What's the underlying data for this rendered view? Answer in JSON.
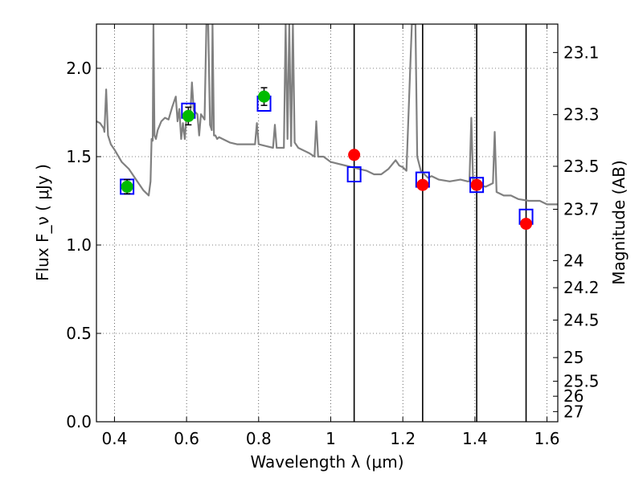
{
  "chart_data": {
    "type": "line",
    "xlabel": "Wavelength  λ (μm)",
    "ylabel": "Flux  F_ν  ( μJy )",
    "ylabel_right": "Magnitude (AB)",
    "xlim": [
      0.35,
      1.63
    ],
    "ylim": [
      0.0,
      2.25
    ],
    "grid": true,
    "x_ticks": [
      0.4,
      0.6,
      0.8,
      1,
      1.2,
      1.4,
      1.6
    ],
    "x_tick_labels": [
      "0.4",
      "0.6",
      "0.8",
      "1",
      "1.2",
      "1.4",
      "1.6"
    ],
    "y_ticks": [
      0.0,
      0.5,
      1.0,
      1.5,
      2.0
    ],
    "y_tick_labels": [
      "0.0",
      "0.5",
      "1.0",
      "1.5",
      "2.0"
    ],
    "mag_ticks": [
      {
        "flux": 2.0893,
        "label": "23.1"
      },
      {
        "flux": 1.7378,
        "label": "23.3"
      },
      {
        "flux": 1.4454,
        "label": "23.5"
      },
      {
        "flux": 1.2023,
        "label": "23.7"
      },
      {
        "flux": 0.912,
        "label": "24"
      },
      {
        "flux": 0.7586,
        "label": "24.2"
      },
      {
        "flux": 0.5754,
        "label": "24.5"
      },
      {
        "flux": 0.3631,
        "label": "25"
      },
      {
        "flux": 0.2291,
        "label": "25.5"
      },
      {
        "flux": 0.1445,
        "label": "26"
      },
      {
        "flux": 0.0575,
        "label": "27"
      }
    ],
    "vertical_lines": [
      1.065,
      1.255,
      1.405,
      1.542
    ],
    "series": [
      {
        "kind": "spectrum",
        "color": "#808080",
        "points": [
          [
            0.35,
            1.7
          ],
          [
            0.36,
            1.69
          ],
          [
            0.37,
            1.66
          ],
          [
            0.372,
            1.64
          ],
          [
            0.377,
            1.88
          ],
          [
            0.382,
            1.62
          ],
          [
            0.39,
            1.57
          ],
          [
            0.4,
            1.54
          ],
          [
            0.42,
            1.47
          ],
          [
            0.44,
            1.43
          ],
          [
            0.46,
            1.37
          ],
          [
            0.48,
            1.31
          ],
          [
            0.49,
            1.29
          ],
          [
            0.495,
            1.28
          ],
          [
            0.5,
            1.36
          ],
          [
            0.503,
            1.6
          ],
          [
            0.506,
            1.59
          ],
          [
            0.508,
            2.25
          ],
          [
            0.511,
            1.62
          ],
          [
            0.515,
            1.6
          ],
          [
            0.52,
            1.65
          ],
          [
            0.53,
            1.7
          ],
          [
            0.54,
            1.72
          ],
          [
            0.55,
            1.71
          ],
          [
            0.56,
            1.78
          ],
          [
            0.57,
            1.84
          ],
          [
            0.575,
            1.7
          ],
          [
            0.58,
            1.77
          ],
          [
            0.585,
            1.6
          ],
          [
            0.59,
            1.69
          ],
          [
            0.595,
            1.6
          ],
          [
            0.6,
            1.73
          ],
          [
            0.61,
            1.72
          ],
          [
            0.615,
            1.92
          ],
          [
            0.62,
            1.76
          ],
          [
            0.63,
            1.74
          ],
          [
            0.635,
            1.62
          ],
          [
            0.64,
            1.74
          ],
          [
            0.65,
            1.71
          ],
          [
            0.655,
            2.25
          ],
          [
            0.66,
            2.25
          ],
          [
            0.665,
            1.68
          ],
          [
            0.67,
            1.65
          ],
          [
            0.672,
            2.25
          ],
          [
            0.676,
            1.62
          ],
          [
            0.68,
            1.62
          ],
          [
            0.685,
            1.6
          ],
          [
            0.69,
            1.61
          ],
          [
            0.7,
            1.6
          ],
          [
            0.72,
            1.58
          ],
          [
            0.74,
            1.57
          ],
          [
            0.76,
            1.57
          ],
          [
            0.78,
            1.57
          ],
          [
            0.79,
            1.57
          ],
          [
            0.795,
            1.69
          ],
          [
            0.8,
            1.57
          ],
          [
            0.82,
            1.56
          ],
          [
            0.84,
            1.55
          ],
          [
            0.845,
            1.68
          ],
          [
            0.85,
            1.55
          ],
          [
            0.86,
            1.55
          ],
          [
            0.87,
            1.55
          ],
          [
            0.875,
            2.25
          ],
          [
            0.88,
            1.6
          ],
          [
            0.885,
            2.25
          ],
          [
            0.89,
            1.56
          ],
          [
            0.895,
            2.25
          ],
          [
            0.9,
            1.58
          ],
          [
            0.91,
            1.55
          ],
          [
            0.92,
            1.54
          ],
          [
            0.94,
            1.52
          ],
          [
            0.955,
            1.5
          ],
          [
            0.96,
            1.7
          ],
          [
            0.965,
            1.5
          ],
          [
            0.98,
            1.5
          ],
          [
            1.0,
            1.47
          ],
          [
            1.02,
            1.46
          ],
          [
            1.04,
            1.45
          ],
          [
            1.06,
            1.44
          ],
          [
            1.08,
            1.43
          ],
          [
            1.1,
            1.42
          ],
          [
            1.12,
            1.4
          ],
          [
            1.14,
            1.4
          ],
          [
            1.16,
            1.43
          ],
          [
            1.18,
            1.48
          ],
          [
            1.19,
            1.45
          ],
          [
            1.2,
            1.44
          ],
          [
            1.21,
            1.42
          ],
          [
            1.225,
            2.25
          ],
          [
            1.235,
            2.25
          ],
          [
            1.24,
            1.5
          ],
          [
            1.25,
            1.42
          ],
          [
            1.27,
            1.38
          ],
          [
            1.28,
            1.39
          ],
          [
            1.3,
            1.37
          ],
          [
            1.33,
            1.36
          ],
          [
            1.36,
            1.37
          ],
          [
            1.38,
            1.36
          ],
          [
            1.385,
            1.36
          ],
          [
            1.39,
            1.72
          ],
          [
            1.395,
            1.36
          ],
          [
            1.4,
            1.35
          ],
          [
            1.41,
            1.34
          ],
          [
            1.43,
            1.33
          ],
          [
            1.44,
            1.34
          ],
          [
            1.45,
            1.35
          ],
          [
            1.455,
            1.64
          ],
          [
            1.46,
            1.3
          ],
          [
            1.48,
            1.28
          ],
          [
            1.5,
            1.28
          ],
          [
            1.52,
            1.26
          ],
          [
            1.55,
            1.25
          ],
          [
            1.58,
            1.25
          ],
          [
            1.6,
            1.23
          ],
          [
            1.63,
            1.23
          ]
        ]
      },
      {
        "kind": "squares",
        "color": "#0000ff",
        "points": [
          [
            0.435,
            1.33
          ],
          [
            0.605,
            1.76
          ],
          [
            0.815,
            1.8
          ],
          [
            1.065,
            1.4
          ],
          [
            1.255,
            1.37
          ],
          [
            1.405,
            1.34
          ],
          [
            1.542,
            1.16
          ]
        ]
      },
      {
        "kind": "circles",
        "color": "#00bb00",
        "points": [
          {
            "x": 0.435,
            "y": 1.33,
            "err": 0.04
          },
          {
            "x": 0.605,
            "y": 1.73,
            "err": 0.05
          },
          {
            "x": 0.815,
            "y": 1.84,
            "err": 0.05
          }
        ]
      },
      {
        "kind": "circles",
        "color": "#ff0000",
        "points": [
          {
            "x": 1.065,
            "y": 1.51
          },
          {
            "x": 1.255,
            "y": 1.34
          },
          {
            "x": 1.405,
            "y": 1.34
          },
          {
            "x": 1.542,
            "y": 1.12
          }
        ]
      }
    ]
  }
}
